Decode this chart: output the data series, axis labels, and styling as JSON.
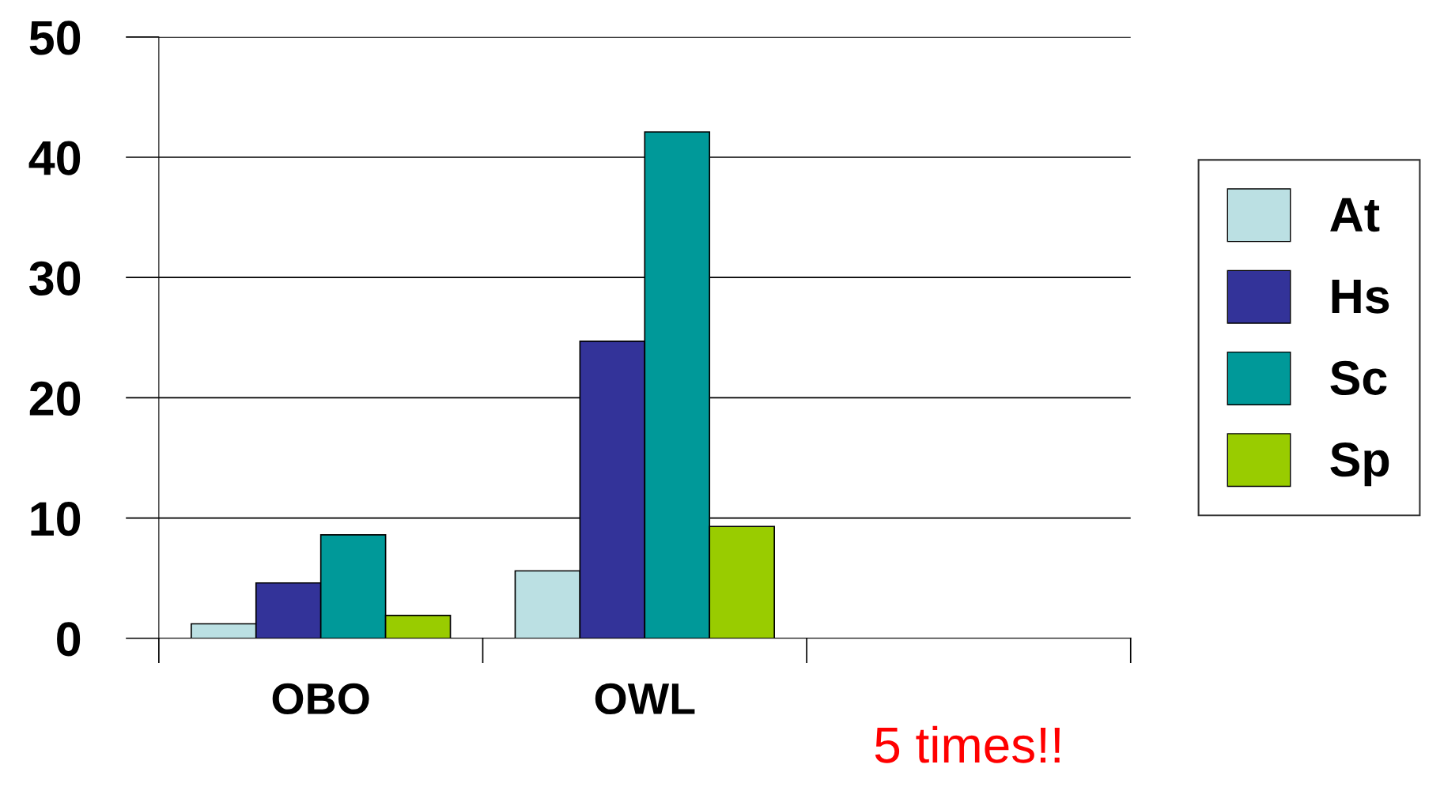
{
  "chart_data": {
    "type": "bar",
    "categories": [
      "OBO",
      "OWL",
      null
    ],
    "series": [
      {
        "name": "At",
        "color": "#bbe0e3",
        "values": [
          1.2,
          5.6,
          null
        ]
      },
      {
        "name": "Hs",
        "color": "#333399",
        "values": [
          4.6,
          24.7,
          null
        ]
      },
      {
        "name": "Sc",
        "color": "#009999",
        "values": [
          8.6,
          42.1,
          null
        ]
      },
      {
        "name": "Sp",
        "color": "#99cc00",
        "values": [
          1.9,
          9.3,
          null
        ]
      }
    ],
    "ylim": [
      0,
      50
    ],
    "yticks": [
      0,
      10,
      20,
      30,
      40,
      50
    ],
    "grid": "y",
    "legend": "right",
    "annotations": [
      "5 times!!"
    ]
  }
}
